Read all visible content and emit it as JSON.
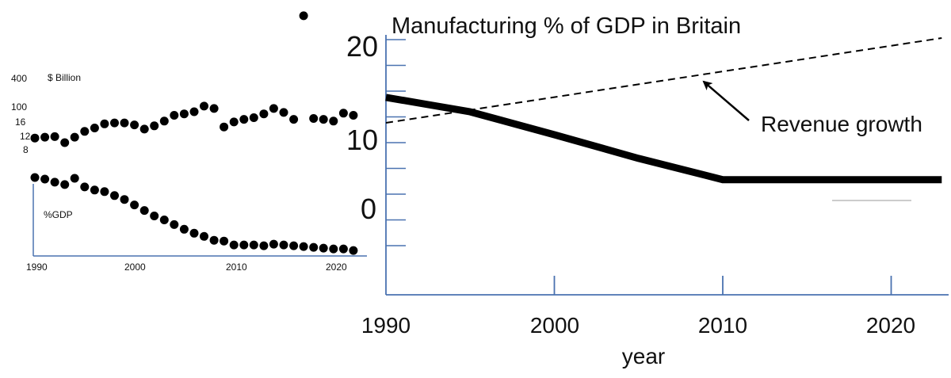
{
  "colors": {
    "axis": "#4a72b0",
    "ink": "#000000",
    "background": "#ffffff"
  },
  "chart_data": [
    {
      "type": "scatter",
      "title": "",
      "ylabel": "$ Billion",
      "y_tick_labels": [
        "400",
        "100",
        "16",
        "12",
        "8"
      ],
      "x_tick_labels": [
        "1990",
        "2000",
        "2010",
        "2020"
      ],
      "xlim": [
        1990,
        2023
      ],
      "series": [
        {
          "name": "",
          "x": [
            1990,
            1991,
            1992,
            1993,
            1994,
            1995,
            1996,
            1997,
            1998,
            1999,
            2000,
            2001,
            2002,
            2003,
            2004,
            2005,
            2006,
            2007,
            2008,
            2009,
            2010,
            2011,
            2012,
            2013,
            2014,
            2015,
            2016,
            2017,
            2018,
            2019,
            2020,
            2021,
            2022
          ],
          "y": [
            12,
            12.3,
            12.5,
            10.5,
            12.3,
            14.5,
            16,
            18,
            18.5,
            18.5,
            17.5,
            15.5,
            17,
            19.5,
            23,
            24,
            25.5,
            30,
            28,
            16.5,
            19,
            20.5,
            21.5,
            24,
            28,
            25,
            20.5,
            400,
            21,
            20.5,
            19.5,
            24.5,
            23
          ]
        }
      ]
    },
    {
      "type": "scatter",
      "title": "",
      "ylabel": "%GDP",
      "x_tick_labels": [
        "1990",
        "2000",
        "2010",
        "2020"
      ],
      "xlim": [
        1990,
        2023
      ],
      "series": [
        {
          "name": "",
          "x": [
            1990,
            1991,
            1992,
            1993,
            1994,
            1995,
            1996,
            1997,
            1998,
            1999,
            2000,
            2001,
            2002,
            2003,
            2004,
            2005,
            2006,
            2007,
            2008,
            2009,
            2010,
            2011,
            2012,
            2013,
            2014,
            2015,
            2016,
            2017,
            2018,
            2019,
            2020,
            2021,
            2022
          ],
          "y": [
            17.2,
            17,
            16.6,
            16.3,
            17.1,
            16,
            15.6,
            15.4,
            14.9,
            14.4,
            13.7,
            13,
            12.3,
            11.8,
            11.2,
            10.6,
            10.1,
            9.7,
            9.2,
            9.1,
            8.6,
            8.6,
            8.6,
            8.5,
            8.7,
            8.6,
            8.5,
            8.4,
            8.3,
            8.2,
            8.1,
            8.1,
            7.9
          ]
        }
      ]
    },
    {
      "type": "line",
      "title": "Manufacturing % of GDP in Britain",
      "xlabel": "year",
      "ylabel": "",
      "xlim": [
        1990,
        2023
      ],
      "ylim": [
        -5,
        20
      ],
      "x_tick_labels": [
        "1990",
        "2000",
        "2010",
        "2020"
      ],
      "y_tick_labels": [
        "20",
        "10",
        "0"
      ],
      "series": [
        {
          "name": "",
          "x": [
            1990,
            1995,
            2000,
            2005,
            2010,
            2023
          ],
          "y": [
            13,
            11.3,
            8.6,
            5.8,
            3.3,
            3.3
          ]
        },
        {
          "name": "",
          "style": "dashed",
          "x": [
            1990,
            2023
          ],
          "y": [
            10,
            20
          ]
        }
      ],
      "annotations": [
        {
          "text": "Revenue growth"
        }
      ]
    }
  ]
}
